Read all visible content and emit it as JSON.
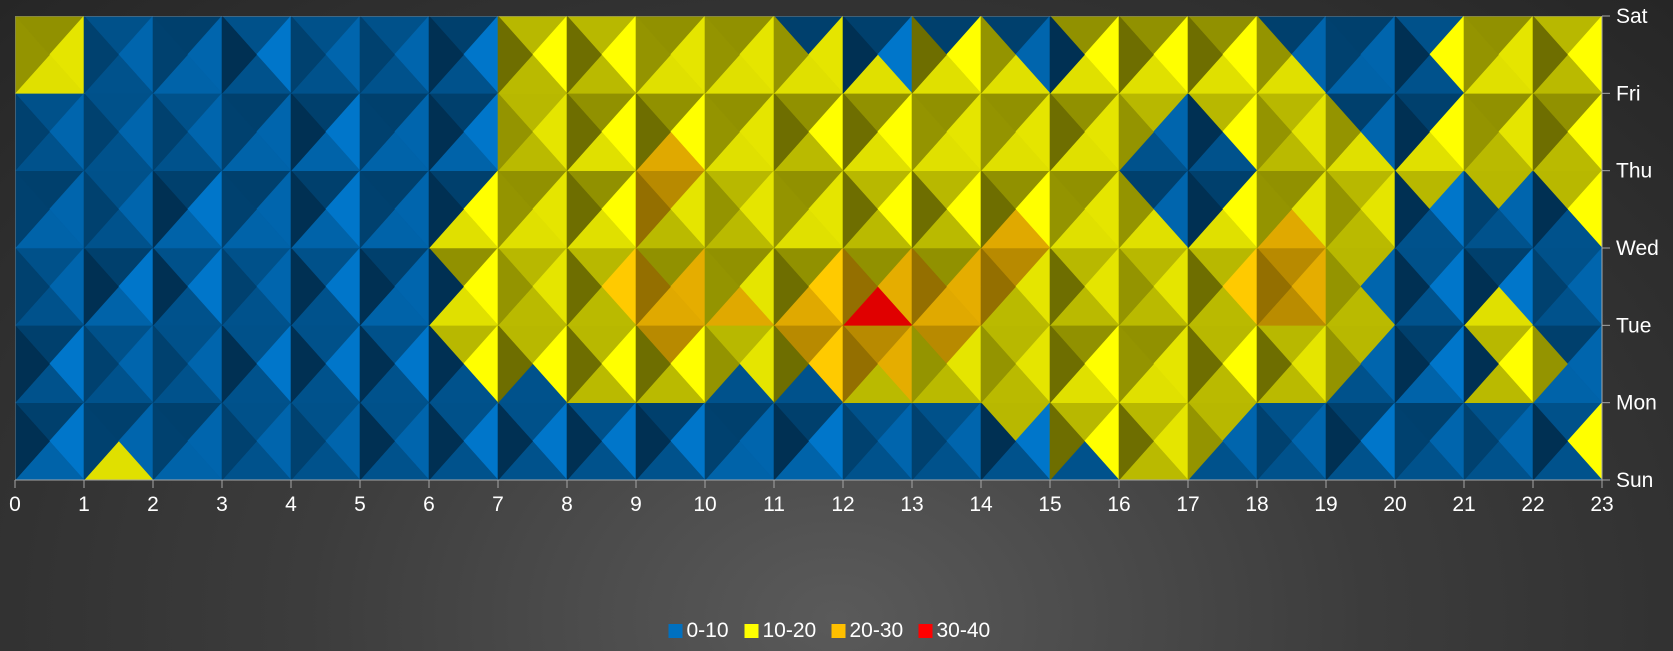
{
  "chart_data": {
    "type": "heatmap",
    "subtype": "3D surface contour (top view)",
    "x": [
      0,
      1,
      2,
      3,
      4,
      5,
      6,
      7,
      8,
      9,
      10,
      11,
      12,
      13,
      14,
      15,
      16,
      17,
      18,
      19,
      20,
      21,
      22,
      23
    ],
    "x_tick_labels": [
      "0",
      "1",
      "2",
      "3",
      "4",
      "5",
      "6",
      "7",
      "8",
      "9",
      "10",
      "11",
      "12",
      "13",
      "14",
      "15",
      "16",
      "17",
      "18",
      "19",
      "20",
      "21",
      "22",
      "23"
    ],
    "y": [
      "Sun",
      "Mon",
      "Tue",
      "Wed",
      "Thu",
      "Fri",
      "Sat"
    ],
    "y_axis_position": "right",
    "values": [
      [
        4,
        12,
        13,
        2,
        2,
        1,
        1,
        1,
        2,
        5,
        12,
        9,
        7,
        6,
        2,
        2,
        5,
        13,
        5,
        5,
        11,
        5,
        2,
        14
      ],
      [
        2,
        7,
        2,
        3,
        2,
        2,
        2,
        6,
        11,
        9,
        8,
        4,
        8,
        8,
        7,
        17,
        22,
        14,
        11,
        9,
        7,
        9,
        11,
        8
      ],
      [
        6,
        3,
        7,
        3,
        5,
        7,
        12,
        17,
        16,
        19,
        26,
        18,
        36,
        32,
        22,
        11,
        15,
        11,
        19,
        21,
        1,
        10,
        12,
        5
      ],
      [
        11,
        4,
        3,
        9,
        5,
        9,
        4,
        21,
        15,
        23,
        14,
        19,
        18,
        12,
        21,
        21,
        17,
        10,
        25,
        19,
        6,
        6,
        7,
        11
      ],
      [
        7,
        5,
        3,
        4,
        4,
        6,
        4,
        11,
        10,
        19,
        24,
        14,
        14,
        23,
        18,
        19,
        17,
        1,
        13,
        15,
        12,
        14,
        12,
        13
      ],
      [
        13,
        8,
        5,
        3,
        2,
        2,
        2,
        11,
        11,
        16,
        16,
        12,
        16,
        18,
        13,
        10,
        12,
        15,
        17,
        14,
        1,
        15,
        11,
        14
      ],
      [
        8,
        12,
        4,
        2,
        12,
        5,
        2,
        11,
        12,
        17,
        12,
        14,
        3,
        2,
        8,
        9,
        12,
        11,
        13,
        2,
        8,
        11,
        14,
        12
      ]
    ],
    "value_bands": [
      {
        "label": "0-10",
        "min": 0,
        "max": 10,
        "color": "#0070c0"
      },
      {
        "label": "10-20",
        "min": 10,
        "max": 20,
        "color": "#ffff00"
      },
      {
        "label": "20-30",
        "min": 20,
        "max": 30,
        "color": "#ffc000"
      },
      {
        "label": "30-40",
        "min": 30,
        "max": 40,
        "color": "#ff0000"
      }
    ],
    "legend_position": "bottom"
  }
}
